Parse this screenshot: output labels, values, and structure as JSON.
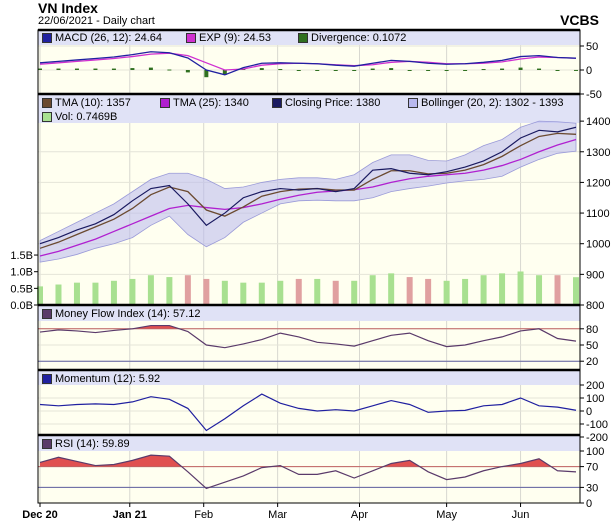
{
  "header": {
    "title": "VN Index",
    "subtitle": "22/06/2021 - Daily chart",
    "brand": "VCBS"
  },
  "colors": {
    "close": "#1a1a60",
    "tma10": "#6b4a30",
    "tma25": "#b020d0",
    "bollinger": "#b8b8ee",
    "macd": "#2020a0",
    "exp": "#d030d0",
    "divergence": "#307020",
    "volume_up": "#a8e090",
    "volume_down": "#e0a0a0",
    "mfi": "#5a3a6a",
    "momentum": "#2020a0",
    "rsi": "#5a3a6a",
    "overbought_fill": "#e05050",
    "panel_bg": "#fffff0",
    "legend_bg": "#e0e2f6"
  },
  "chart_data": {
    "type": "line",
    "x": [
      "2020-12-01",
      "2020-12-08",
      "2020-12-15",
      "2020-12-22",
      "2020-12-29",
      "2021-01-05",
      "2021-01-12",
      "2021-01-19",
      "2021-01-26",
      "2021-02-02",
      "2021-02-09",
      "2021-02-16",
      "2021-02-23",
      "2021-03-02",
      "2021-03-09",
      "2021-03-16",
      "2021-03-23",
      "2021-03-30",
      "2021-04-06",
      "2021-04-13",
      "2021-04-20",
      "2021-04-27",
      "2021-05-04",
      "2021-05-11",
      "2021-05-18",
      "2021-05-25",
      "2021-06-01",
      "2021-06-08",
      "2021-06-15",
      "2021-06-22"
    ],
    "xlim": [
      "2020-12-01",
      "2021-06-22"
    ],
    "x_ticks": [
      {
        "label": "Dec 20",
        "date": "2020-12-01",
        "bold": true
      },
      {
        "label": "Jan 21",
        "date": "2021-01-04",
        "bold": true
      },
      {
        "label": "Feb",
        "date": "2021-02-01",
        "bold": false
      },
      {
        "label": "Mar",
        "date": "2021-03-01",
        "bold": false
      },
      {
        "label": "Apr",
        "date": "2021-04-01",
        "bold": false
      },
      {
        "label": "May",
        "date": "2021-05-04",
        "bold": false
      },
      {
        "label": "Jun",
        "date": "2021-06-01",
        "bold": false
      }
    ],
    "panels": [
      {
        "id": "macd",
        "ylim": [
          -50,
          50
        ],
        "y_ticks": [
          "50",
          "0",
          "-50"
        ],
        "y_tick_values": [
          50,
          0,
          -50
        ],
        "legend": [
          "MACD (26, 12): 24.64",
          "EXP (9): 24.53",
          "Divergence: 0.1072"
        ],
        "series": [
          {
            "name": "MACD (26, 12)",
            "values": [
              15,
              18,
              21,
              24,
              27,
              32,
              38,
              36,
              25,
              0,
              -10,
              5,
              14,
              15,
              14,
              13,
              10,
              8,
              14,
              20,
              18,
              14,
              12,
              13,
              16,
              20,
              28,
              30,
              26,
              24.64
            ]
          },
          {
            "name": "EXP (9)",
            "values": [
              12,
              15,
              18,
              21,
              24,
              28,
              33,
              35,
              30,
              15,
              0,
              2,
              10,
              13,
              14,
              13,
              11,
              9,
              11,
              16,
              18,
              16,
              13,
              13,
              14,
              17,
              23,
              27,
              26,
              24.53
            ]
          },
          {
            "name": "Divergence",
            "values": [
              3,
              3,
              3,
              3,
              3,
              4,
              5,
              1,
              -5,
              -15,
              -10,
              3,
              4,
              2,
              0,
              0,
              -1,
              -1,
              3,
              4,
              0,
              -2,
              -1,
              0,
              2,
              3,
              5,
              3,
              0,
              0.1072
            ]
          }
        ]
      },
      {
        "id": "price",
        "ylim": [
          800,
          1420
        ],
        "y_ticks": [
          "1400",
          "1300",
          "1200",
          "1100",
          "1000",
          "900",
          "800"
        ],
        "y_tick_values": [
          1400,
          1300,
          1200,
          1100,
          1000,
          900,
          800
        ],
        "vol_ylim": [
          0,
          5
        ],
        "vol_ticks": [
          "1.5B",
          "1.0B",
          "0.5B",
          "0.0B"
        ],
        "vol_tick_values": [
          1.5,
          1.0,
          0.5,
          0
        ],
        "legend": [
          "TMA (10): 1357",
          "TMA (25): 1340",
          "Closing Price: 1380",
          "Bollinger (20, 2): 1302 - 1393",
          "Vol: 0.7469B"
        ],
        "series": [
          {
            "name": "Closing Price",
            "values": [
              1000,
              1020,
              1045,
              1065,
              1095,
              1140,
              1180,
              1190,
              1130,
              1060,
              1100,
              1150,
              1170,
              1180,
              1175,
              1180,
              1170,
              1180,
              1240,
              1245,
              1230,
              1225,
              1235,
              1250,
              1270,
              1300,
              1345,
              1370,
              1365,
              1380
            ]
          },
          {
            "name": "TMA (10)",
            "values": [
              985,
              1005,
              1030,
              1055,
              1080,
              1115,
              1160,
              1185,
              1170,
              1110,
              1090,
              1120,
              1155,
              1170,
              1178,
              1180,
              1175,
              1175,
              1210,
              1238,
              1238,
              1228,
              1230,
              1240,
              1258,
              1285,
              1320,
              1350,
              1360,
              1357
            ]
          },
          {
            "name": "TMA (25)",
            "values": [
              960,
              975,
              995,
              1015,
              1040,
              1065,
              1090,
              1115,
              1125,
              1118,
              1112,
              1118,
              1130,
              1145,
              1158,
              1168,
              1172,
              1176,
              1185,
              1200,
              1212,
              1220,
              1225,
              1230,
              1240,
              1255,
              1275,
              1300,
              1322,
              1340
            ]
          },
          {
            "name": "Bollinger upper",
            "values": [
              1010,
              1040,
              1070,
              1100,
              1130,
              1170,
              1210,
              1230,
              1230,
              1210,
              1180,
              1185,
              1200,
              1210,
              1215,
              1215,
              1210,
              1225,
              1265,
              1290,
              1290,
              1272,
              1270,
              1290,
              1320,
              1340,
              1380,
              1400,
              1398,
              1393
            ]
          },
          {
            "name": "Bollinger lower",
            "values": [
              940,
              950,
              965,
              985,
              1000,
              1020,
              1060,
              1090,
              1030,
              990,
              1020,
              1070,
              1100,
              1130,
              1140,
              1142,
              1140,
              1140,
              1150,
              1170,
              1180,
              1188,
              1198,
              1205,
              1210,
              1220,
              1250,
              1275,
              1295,
              1302
            ]
          },
          {
            "name": "Vol",
            "values": [
              0.5,
              0.55,
              0.6,
              0.6,
              0.65,
              0.7,
              0.8,
              0.75,
              0.8,
              0.7,
              0.65,
              0.6,
              0.6,
              0.65,
              0.7,
              0.7,
              0.65,
              0.65,
              0.8,
              0.85,
              0.75,
              0.7,
              0.65,
              0.7,
              0.8,
              0.85,
              0.9,
              0.8,
              0.8,
              0.7469
            ]
          }
        ]
      },
      {
        "id": "mfi",
        "ylim": [
          0,
          100
        ],
        "y_ticks": [
          "80",
          "50",
          "20"
        ],
        "y_tick_values": [
          80,
          50,
          20
        ],
        "threshold": 80,
        "lower": 20,
        "legend": [
          "Money Flow Index (14): 57.12"
        ],
        "series": [
          {
            "name": "Money Flow Index (14)",
            "values": [
              74,
              78,
              76,
              73,
              77,
              80,
              86,
              86,
              75,
              50,
              45,
              52,
              60,
              72,
              65,
              55,
              52,
              48,
              58,
              68,
              72,
              58,
              47,
              50,
              58,
              65,
              76,
              80,
              62,
              57.12
            ]
          }
        ]
      },
      {
        "id": "momentum",
        "ylim": [
          -200,
          200
        ],
        "y_ticks": [
          "200",
          "100",
          "0",
          "-100",
          "-200"
        ],
        "y_tick_values": [
          200,
          100,
          0,
          -100,
          -200
        ],
        "legend": [
          "Momentum (12): 5.92"
        ],
        "series": [
          {
            "name": "Momentum (12)",
            "values": [
              50,
              40,
              50,
              55,
              50,
              70,
              110,
              90,
              20,
              -150,
              -60,
              40,
              130,
              60,
              20,
              0,
              10,
              0,
              40,
              80,
              50,
              -10,
              0,
              5,
              40,
              50,
              100,
              40,
              30,
              5.92
            ]
          }
        ]
      },
      {
        "id": "rsi",
        "ylim": [
          0,
          100
        ],
        "y_ticks": [
          "100",
          "70",
          "30",
          "0"
        ],
        "y_tick_values": [
          100,
          70,
          30,
          0
        ],
        "threshold": 70,
        "lower": 30,
        "legend": [
          "RSI (14): 59.89"
        ],
        "series": [
          {
            "name": "RSI (14)",
            "values": [
              78,
              88,
              80,
              72,
              74,
              82,
              92,
              90,
              60,
              28,
              40,
              52,
              68,
              72,
              55,
              55,
              62,
              48,
              62,
              76,
              82,
              60,
              45,
              50,
              62,
              70,
              76,
              85,
              62,
              59.89
            ]
          }
        ]
      }
    ]
  }
}
